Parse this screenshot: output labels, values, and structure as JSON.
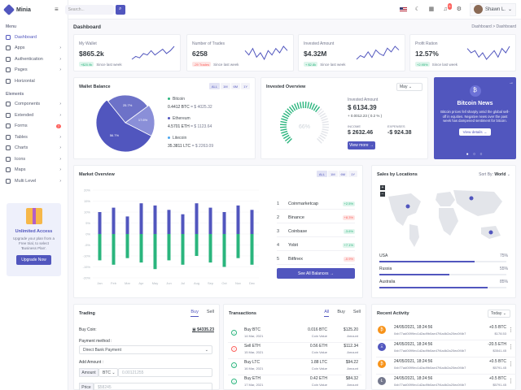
{
  "brand": {
    "name": "Minia"
  },
  "sidebar": {
    "menu_title": "Menu",
    "menu_items": [
      {
        "label": "Dashboard",
        "icon": "home-icon",
        "arrow": "",
        "badge": ""
      },
      {
        "label": "Apps",
        "icon": "grid-icon",
        "arrow": "›",
        "badge": ""
      },
      {
        "label": "Authentication",
        "icon": "users-icon",
        "arrow": "›",
        "badge": ""
      },
      {
        "label": "Pages",
        "icon": "file-icon",
        "arrow": "›",
        "badge": ""
      },
      {
        "label": "Horizontal",
        "icon": "layout-icon",
        "arrow": "",
        "badge": ""
      }
    ],
    "elements_title": "Elements",
    "element_items": [
      {
        "label": "Components",
        "icon": "briefcase-icon",
        "arrow": "›",
        "badge": ""
      },
      {
        "label": "Extended",
        "icon": "gift-icon",
        "arrow": "›",
        "badge": ""
      },
      {
        "label": "Forms",
        "icon": "box-icon",
        "arrow": "",
        "badge": "7"
      },
      {
        "label": "Tables",
        "icon": "sliders-icon",
        "arrow": "›",
        "badge": ""
      },
      {
        "label": "Charts",
        "icon": "pie-chart-icon",
        "arrow": "›",
        "badge": ""
      },
      {
        "label": "Icons",
        "icon": "cpu-icon",
        "arrow": "›",
        "badge": ""
      },
      {
        "label": "Maps",
        "icon": "map-icon",
        "arrow": "›",
        "badge": ""
      },
      {
        "label": "Multi Level",
        "icon": "share-icon",
        "arrow": "›",
        "badge": ""
      }
    ],
    "promo": {
      "title": "Unlimited Access",
      "text": "Upgrade your plan from a Free trial, to select 'Business Plan'.",
      "button": "Upgrade Now"
    }
  },
  "topbar": {
    "search_placeholder": "Search...",
    "user_name": "Shawn L.",
    "notification_count": "5"
  },
  "page": {
    "title": "Dashboard",
    "breadcrumb": "Dashboard  >  Dashboard"
  },
  "stats": [
    {
      "label": "My Wallet",
      "value": "$865.2k",
      "chip": "+$20.9k",
      "chip_type": "green",
      "foot": "Since last week",
      "spark": [
        3,
        5,
        4,
        7,
        6,
        9,
        6,
        8,
        10,
        7,
        9,
        12
      ]
    },
    {
      "label": "Number of Trades",
      "value": "6258",
      "chip": "-29 Trades",
      "chip_type": "red",
      "foot": "Since last week",
      "spark": [
        8,
        6,
        9,
        5,
        7,
        4,
        8,
        6,
        9,
        7,
        10,
        8
      ]
    },
    {
      "label": "Invested Amount",
      "value": "$4.32M",
      "chip": "+ $2.8k",
      "chip_type": "green",
      "foot": "Since last week",
      "spark": [
        4,
        6,
        5,
        8,
        5,
        9,
        7,
        6,
        10,
        8,
        11,
        9
      ]
    },
    {
      "label": "Profit Ration",
      "value": "12.57%",
      "chip": "+2.95%",
      "chip_type": "green",
      "foot": "Since last week",
      "spark": [
        9,
        7,
        8,
        5,
        7,
        4,
        6,
        8,
        5,
        9,
        7,
        10
      ]
    }
  ],
  "wallet": {
    "title": "Wallet Balance",
    "tabs": [
      "ALL",
      "1M",
      "6M",
      "1Y"
    ],
    "active_tab": "ALL",
    "slices": [
      {
        "name": "Bitcoin",
        "percent": 56.7,
        "color": "#5156be"
      },
      {
        "name": "Ethereum",
        "percent": 25.7,
        "color": "#6d72c8"
      },
      {
        "name": "Litecoin",
        "percent": 17.6,
        "color": "#8a8fd8"
      }
    ],
    "slice_labels": [
      "56.7%",
      "25.7%",
      "17.6%"
    ],
    "legend": [
      {
        "name": "Bitcoin",
        "amount": "0.4412 BTC",
        "usd": "= $ 4025.32",
        "color": "#2ab57d"
      },
      {
        "name": "Ethereum",
        "amount": "4.5701 ETH",
        "usd": "= $ 1123.64",
        "color": "#5156be"
      },
      {
        "name": "Litecoin",
        "amount": "35.3811 LTC",
        "usd": "= $ 2263.09",
        "color": "#4ba6ef"
      }
    ]
  },
  "invested": {
    "title": "Invested Overview",
    "dropdown": "May",
    "gauge_percent": 66,
    "gauge_label": "66%",
    "amount_label": "Invested Amount",
    "amount": "$ 6134.39",
    "amount_change": "+ 0.0012.23 ( 0.2 % )",
    "income_label": "INCOME",
    "income": "$ 2632.46",
    "expenses_label": "EXPENSES",
    "expenses": "-$ 924.38",
    "button": "View more"
  },
  "news": {
    "title": "Bitcoin News",
    "coin_symbol": "₿",
    "text": "Bitcoin prices fell sharply amid the global sell-off in equities. Negative news over the past week has dampened sentiment for bitcoin.",
    "button": "View details"
  },
  "market": {
    "title": "Market Overview",
    "tabs": [
      "ALL",
      "1M",
      "6M",
      "1Y"
    ],
    "active_tab": "ALL",
    "button": "See All Balances",
    "rows": [
      {
        "num": "1",
        "name": "Coinmarketcap",
        "change": "+2.5%",
        "type": "green"
      },
      {
        "num": "2",
        "name": "Binance",
        "change": "+8.3%",
        "type": "red"
      },
      {
        "num": "3",
        "name": "Coinbase",
        "change": "-3.6%",
        "type": "green"
      },
      {
        "num": "4",
        "name": "Yobit",
        "change": "+7.1%",
        "type": "green"
      },
      {
        "num": "5",
        "name": "Bitfinex",
        "change": "-0.9%",
        "type": "red"
      }
    ]
  },
  "chart_data": {
    "type": "bar",
    "categories": [
      "Jan",
      "Feb",
      "Mar",
      "Apr",
      "May",
      "Jun",
      "Jul",
      "Aug",
      "Sep",
      "Oct",
      "Nov",
      "Dec"
    ],
    "series": [
      {
        "values": [
          12,
          14,
          11,
          13,
          16,
          12,
          14,
          10,
          13,
          15,
          11,
          14
        ],
        "color": "#2ab57d"
      },
      {
        "values": [
          -10,
          -12,
          -8,
          -14,
          -13,
          -11,
          -9,
          -14,
          -12,
          -10,
          -13,
          -11
        ],
        "color": "#5156be"
      }
    ],
    "ylim": [
      -20,
      20
    ],
    "yticks": [
      "20%",
      "15%",
      "10%",
      "5%",
      "0%",
      "-5%",
      "-10%",
      "-15%",
      "-20%"
    ]
  },
  "sales": {
    "title": "Sales by Locations",
    "sort_label": "Sort By:",
    "sort_value": "World",
    "locations": [
      {
        "name": "USA",
        "percent": 75,
        "label": "75%"
      },
      {
        "name": "Russia",
        "percent": 55,
        "label": "55%"
      },
      {
        "name": "Australia",
        "percent": 85,
        "label": "85%"
      }
    ]
  },
  "trading": {
    "title": "Trading",
    "tabs": [
      "Buy",
      "Sell"
    ],
    "active_tab": "Buy",
    "coin_label": "Buy Coin:",
    "balance": "$4335.23",
    "method_label": "Payment method :",
    "method_value": "Direct Bank Payment",
    "amount_label": "Add Amount :",
    "amount_addon": "Amount",
    "amount_coin": "BTC",
    "amount_placeholder": "0.00121255",
    "price_addon": "Price",
    "price_placeholder": "$58245"
  },
  "transactions": {
    "title": "Transactions",
    "tabs": [
      "All",
      "Buy",
      "Sell"
    ],
    "active_tab": "All",
    "rows": [
      {
        "type": "buy",
        "name": "Buy BTC",
        "date": "14 Mar, 2021",
        "amount": "0.016 BTC",
        "amount_sub": "Coin Value",
        "usd": "$125.20",
        "usd_sub": "Amount"
      },
      {
        "type": "sell",
        "name": "Sell ETH",
        "date": "15 Mar, 2021",
        "amount": "0.56 ETH",
        "amount_sub": "Coin Value",
        "usd": "$112.34",
        "usd_sub": "Amount"
      },
      {
        "type": "buy",
        "name": "Buy LTC",
        "date": "16 Mar, 2021",
        "amount": "1.88 LTC",
        "amount_sub": "Coin Value",
        "usd": "$94.22",
        "usd_sub": "Amount"
      },
      {
        "type": "buy",
        "name": "Buy ETH",
        "date": "17 Mar, 2021",
        "amount": "0.42 ETH",
        "amount_sub": "Coin Value",
        "usd": "$84.32",
        "usd_sub": "Amount"
      }
    ]
  },
  "activity": {
    "title": "Recent Activity",
    "dropdown": "Today",
    "rows": [
      {
        "coin": "₿",
        "color": "#f7931a",
        "date": "24/05/2021, 18:24:56",
        "hash": "0xb77ad0099ec1d2ad9b0ae47f4a4b2a20ec0f4b7",
        "val": "+0.5 BTC",
        "val_sub": "$178.53"
      },
      {
        "coin": "Ξ",
        "color": "#5156be",
        "date": "24/05/2021, 18:24:56",
        "hash": "0xb77ad0099ec1d2ad9b0ae47f4a4b2a20ec0f4b7",
        "val": "-20.5 ETH",
        "val_sub": "$3541.45"
      },
      {
        "coin": "₿",
        "color": "#f7931a",
        "date": "24/05/2021, 18:24:56",
        "hash": "0xb77ad0099ec1d2ad9b0ae47f4a4b2a20ec0f4b7",
        "val": "+0.5 BTC",
        "val_sub": "$5791.45"
      },
      {
        "coin": "Ł",
        "color": "#74788d",
        "date": "24/05/2021, 18:24:56",
        "hash": "0xb77ad0099ec1d2ad9b0ae47f4a4b2a20ec0f4b7",
        "val": "+0.5 BTC",
        "val_sub": "$5791.45"
      }
    ]
  }
}
